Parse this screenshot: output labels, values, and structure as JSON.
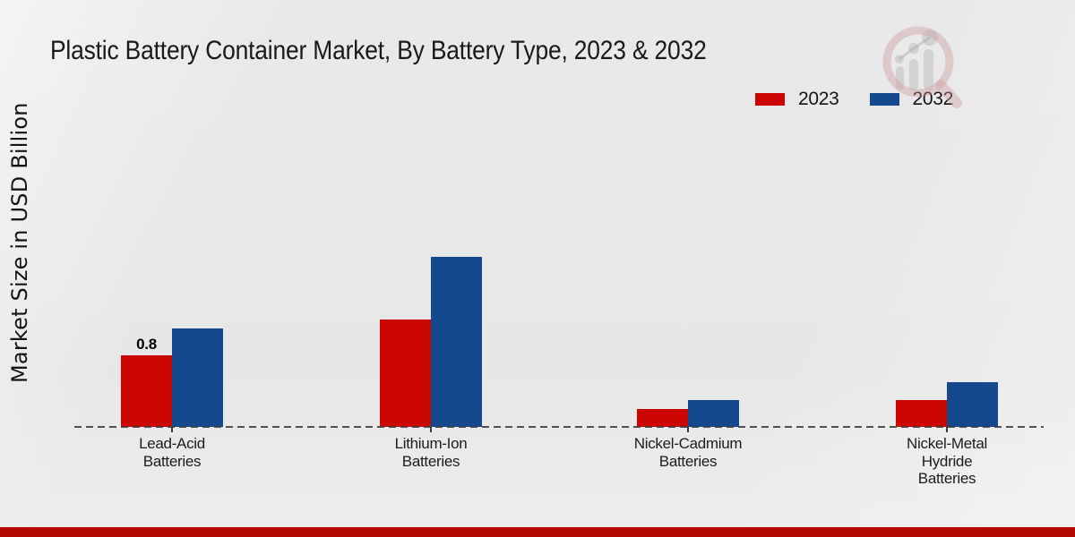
{
  "title": "Plastic Battery Container Market, By Battery Type, 2023 & 2032",
  "y_axis_label": "Market Size in USD Billion",
  "legend": [
    {
      "label": "2023",
      "color": "#cc0703"
    },
    {
      "label": "2032",
      "color": "#14498d"
    }
  ],
  "watermark_icon": "market-research-magnifier-logo",
  "colors": {
    "series_2023": "#cc0703",
    "series_2032": "#14498d",
    "footer_bar": "#b30b01",
    "baseline": "#3c3c3c",
    "background": "#e8e8e9"
  },
  "chart_data": {
    "type": "bar",
    "title": "Plastic Battery Container Market, By Battery Type, 2023 & 2032",
    "xlabel": "",
    "ylabel": "Market Size in USD Billion",
    "categories": [
      "Lead-Acid Batteries",
      "Lithium-Ion Batteries",
      "Nickel-Cadmium Batteries",
      "Nickel-Metal Hydride Batteries"
    ],
    "category_label_lines": [
      [
        "Lead-Acid",
        "Batteries"
      ],
      [
        "Lithium-Ion",
        "Batteries"
      ],
      [
        "Nickel-Cadmium",
        "Batteries"
      ],
      [
        "Nickel-Metal",
        "Hydride",
        "Batteries"
      ]
    ],
    "series": [
      {
        "name": "2023",
        "color": "#cc0703",
        "values": [
          0.8,
          1.2,
          0.2,
          0.3
        ]
      },
      {
        "name": "2032",
        "color": "#14498d",
        "values": [
          1.1,
          1.9,
          0.3,
          0.5
        ]
      }
    ],
    "data_labels": [
      {
        "series": "2023",
        "category_index": 0,
        "text": "0.8"
      }
    ],
    "ylim": [
      0,
      2.2
    ],
    "grid": false,
    "y_axis_ticks_visible": false,
    "baseline_style": "dashed",
    "legend_position": "top-right"
  }
}
